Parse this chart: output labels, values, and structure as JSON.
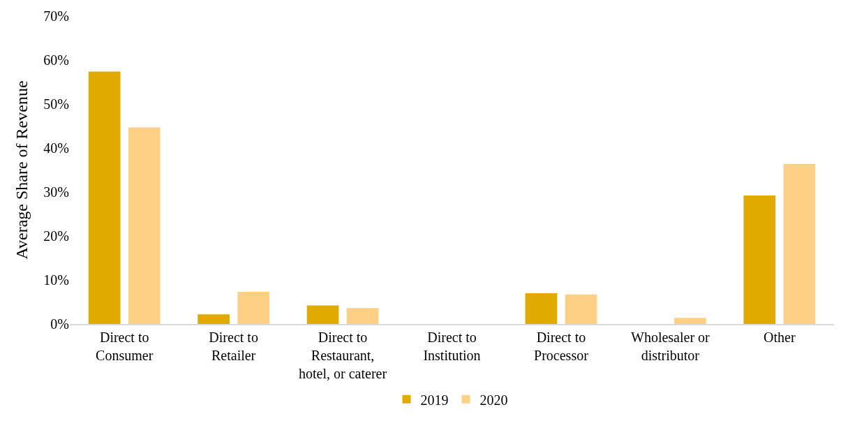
{
  "chart_data": {
    "type": "bar",
    "ylabel": "Average Share of Revenue",
    "categories": [
      "Direct to\nConsumer",
      "Direct to\nRetailer",
      "Direct to\nRestaurant,\nhotel, or caterer",
      "Direct to\nInstitution",
      "Direct to\nProcessor",
      "Wholesaler or\ndistributor",
      "Other"
    ],
    "series": [
      {
        "name": "2019",
        "color": "#e0aa00",
        "values": [
          57.4,
          2.2,
          4.2,
          0,
          7.0,
          0,
          29.2
        ]
      },
      {
        "name": "2020",
        "color": "#fed085",
        "values": [
          44.7,
          7.3,
          3.6,
          0,
          6.7,
          1.4,
          36.4
        ]
      }
    ],
    "ylim": [
      0,
      70
    ],
    "yticks": [
      {
        "value": 0,
        "label": "0%"
      },
      {
        "value": 10,
        "label": "10%"
      },
      {
        "value": 20,
        "label": "20%"
      },
      {
        "value": 30,
        "label": "30%"
      },
      {
        "value": 40,
        "label": "40%"
      },
      {
        "value": 50,
        "label": "50%"
      },
      {
        "value": 60,
        "label": "60%"
      },
      {
        "value": 70,
        "label": "70%"
      }
    ],
    "legend": "bottom"
  }
}
